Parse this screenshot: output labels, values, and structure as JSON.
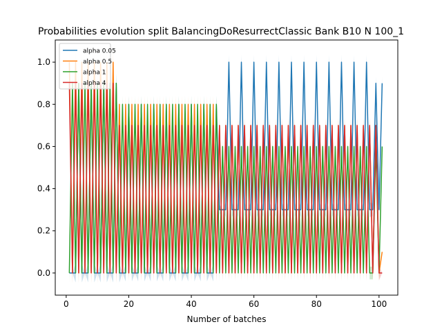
{
  "chart_data": {
    "type": "line",
    "title": "Probabilities evolution split BalancingDoResurrectClassic Bank B10 N 100_1",
    "xlabel": "Number of batches",
    "ylabel": "",
    "xlim": [
      -3.5,
      106
    ],
    "ylim": [
      -0.105,
      1.105
    ],
    "xticks": [
      0,
      20,
      40,
      60,
      80,
      100
    ],
    "xtick_labels": [
      "0",
      "20",
      "40",
      "60",
      "80",
      "100"
    ],
    "yticks": [
      0.0,
      0.2,
      0.4,
      0.6,
      0.8,
      1.0
    ],
    "ytick_labels": [
      "0.0",
      "0.2",
      "0.4",
      "0.6",
      "0.8",
      "1.0"
    ],
    "grid": false,
    "legend": {
      "placement": "top-left"
    },
    "x": [
      1,
      101
    ],
    "series": [
      {
        "name": "alpha 0.05",
        "color": "#1f77b4",
        "period": 4,
        "phase": 0,
        "early_end": 16,
        "early_peak": 0.9,
        "mid_end": 48,
        "mid_peak": 0.8,
        "late_peak": 1.0,
        "low_early": 0.0,
        "low_late": 0.3,
        "final_values": [
          0.3,
          0.9,
          0.3,
          0.9
        ]
      },
      {
        "name": "alpha 0.5",
        "color": "#ff7f0e",
        "period": 2,
        "phase": 1,
        "early_end": 16,
        "early_peak": 1.0,
        "mid_end": 48,
        "mid_peak": 0.8,
        "late_peak": 0.7,
        "low_early": 0.0,
        "low_late": 0.0,
        "final_values": [
          0.0,
          0.7,
          0.0,
          0.1
        ]
      },
      {
        "name": "alpha 1",
        "color": "#2ca02c",
        "period": 2,
        "phase": 0,
        "early_end": 16,
        "early_peak": 0.9,
        "mid_end": 48,
        "mid_peak": 0.8,
        "late_peak": 0.6,
        "low_early": 0.0,
        "low_late": 0.0,
        "final_values": [
          0.0,
          0.6,
          0.0,
          0.6
        ]
      },
      {
        "name": "alpha 4",
        "color": "#d62728",
        "period": 2,
        "phase": 1,
        "early_end": 16,
        "early_peak": 0.9,
        "mid_end": 48,
        "mid_peak": 0.7,
        "late_peak": 0.7,
        "low_early": 0.0,
        "low_late": 0.0,
        "final_values": [
          0.0,
          0.7,
          0.0,
          0.0
        ]
      }
    ]
  }
}
